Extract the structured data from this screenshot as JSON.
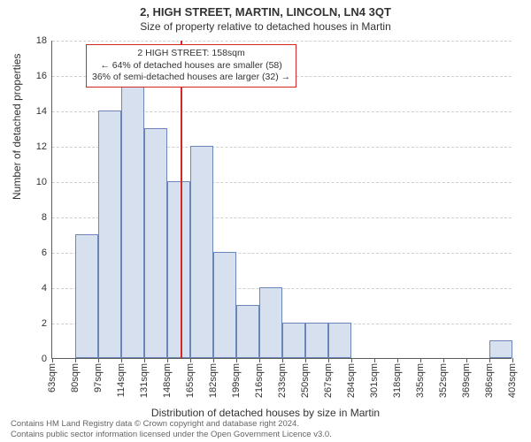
{
  "title": "2, HIGH STREET, MARTIN, LINCOLN, LN4 3QT",
  "subtitle": "Size of property relative to detached houses in Martin",
  "ylabel": "Number of detached properties",
  "xlabel": "Distribution of detached houses by size in Martin",
  "caption_line1": "Contains HM Land Registry data © Crown copyright and database right 2024.",
  "caption_line2": "Contains public sector information licensed under the Open Government Licence v3.0.",
  "chart": {
    "type": "histogram",
    "ylim": [
      0,
      18
    ],
    "ytick_step": 2,
    "bar_fill": "#d7e0ef",
    "bar_stroke": "#6b86b8",
    "grid_color": "#cfcfcf",
    "axis_color": "#5b5b5b",
    "background": "#ffffff",
    "ref_line_color": "#d62728",
    "ref_line_x": 158,
    "x_start": 63,
    "x_step": 17,
    "x_tick_labels": [
      "63sqm",
      "80sqm",
      "97sqm",
      "114sqm",
      "131sqm",
      "148sqm",
      "165sqm",
      "182sqm",
      "199sqm",
      "216sqm",
      "233sqm",
      "250sqm",
      "267sqm",
      "284sqm",
      "301sqm",
      "318sqm",
      "335sqm",
      "352sqm",
      "369sqm",
      "386sqm",
      "403sqm"
    ],
    "bar_values": [
      0,
      7,
      14,
      15.5,
      13,
      10,
      12,
      6,
      3,
      4,
      2,
      2,
      2,
      0,
      0,
      0,
      0,
      0,
      0,
      1
    ],
    "num_bins": 20,
    "label_fontsize": 12,
    "tick_fontsize": 11,
    "title_fontsize": 13
  },
  "annotation": {
    "line1": "2 HIGH STREET: 158sqm",
    "line2": "← 64% of detached houses are smaller (58)",
    "line3": "36% of semi-detached houses are larger (32) →",
    "border_color": "#d62728"
  }
}
